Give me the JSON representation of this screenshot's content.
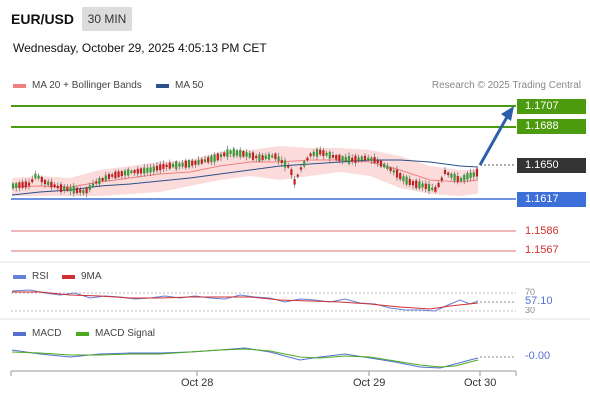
{
  "header": {
    "symbol": "EUR/USD",
    "timeframe": "30 MIN",
    "datetime": "Wednesday, October 29, 2025 4:05:13 PM CET"
  },
  "legend": {
    "bollinger_label": "MA 20 + Bollinger Bands",
    "ma50_label": "MA 50",
    "credit": "Research © 2025 Trading Central"
  },
  "levels": {
    "target2": "1.1707",
    "target1": "1.1688",
    "current": "1.1650",
    "pivot": "1.1617",
    "support1": "1.1586",
    "support2": "1.1567"
  },
  "rsi": {
    "label": "RSI",
    "ma_label": "9MA",
    "value": "57.10",
    "upper": "70",
    "lower": "30"
  },
  "macd": {
    "label": "MACD",
    "signal_label": "MACD Signal",
    "value": "-0.00"
  },
  "xaxis": {
    "labels": [
      "Oct 28",
      "Oct 29",
      "Oct 30"
    ]
  },
  "colors": {
    "resistance": "#4c9a0e",
    "pivot": "#3d6fd8",
    "support": "#e8a0a0",
    "current": "#333333",
    "arrow": "#2d5ea8",
    "rsi": "#6680d8",
    "rsi_ma": "#d03030",
    "macd": "#5570d0",
    "macd_signal": "#4caa20",
    "band_fill": "#fbd5d5",
    "ma50": "#2d4f8a",
    "bull": "#3a9a3a",
    "bear": "#c02020"
  }
}
